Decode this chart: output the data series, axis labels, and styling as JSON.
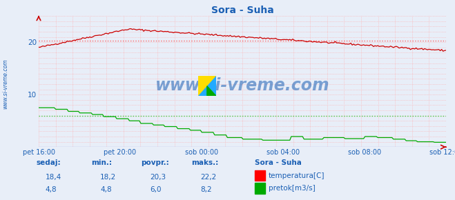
{
  "title": "Sora - Suha",
  "title_color": "#1a5fb4",
  "fig_bg_color": "#e8eef8",
  "plot_bg_color": "#e8eef8",
  "grid_color": "#ffaaaa",
  "grid_minor_color": "#ffcccc",
  "x_labels": [
    "pet 16:00",
    "pet 20:00",
    "sob 00:00",
    "sob 04:00",
    "sob 08:00",
    "sob 12:00"
  ],
  "x_ticks_norm": [
    0.0,
    0.2,
    0.4,
    0.6,
    0.8,
    1.0
  ],
  "ylim": [
    0,
    25
  ],
  "yticks": [
    10,
    20
  ],
  "tick_color": "#1a5fb4",
  "temp_color": "#cc0000",
  "flow_color": "#00aa00",
  "avg_temp_color": "#ff6666",
  "avg_flow_color": "#44cc44",
  "temp_avg": 20.3,
  "flow_avg": 6.0,
  "watermark": "www.si-vreme.com",
  "watermark_color": "#1a5fb4",
  "sidebar_text": "www.si-vreme.com",
  "sidebar_color": "#1a5fb4",
  "bottom_label_color": "#1a5fb4",
  "bottom_title": "Sora - Suha",
  "table_headers": [
    "sedaj:",
    "min.:",
    "povpr.:",
    "maks.:"
  ],
  "table_temp": [
    "18,4",
    "18,2",
    "20,3",
    "22,2"
  ],
  "table_flow": [
    "4,8",
    "4,8",
    "6,0",
    "8,2"
  ],
  "legend_temp": "temperatura[C]",
  "legend_flow": "pretok[m3/s]",
  "n_points": 288
}
